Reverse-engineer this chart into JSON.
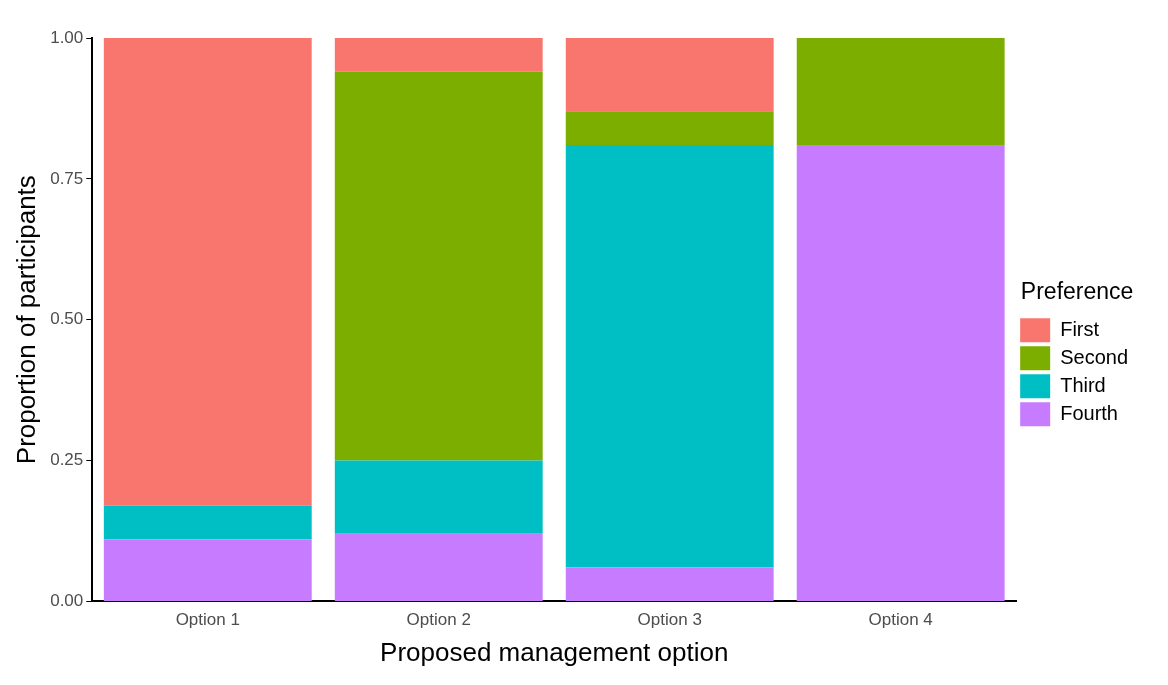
{
  "chart_data": {
    "type": "bar",
    "stacked": true,
    "xlabel": "Proposed management option",
    "ylabel": "Proportion of participants",
    "legend_title": "Preference",
    "legend": "right",
    "grid": false,
    "categories": [
      "Option 1",
      "Option 2",
      "Option 3",
      "Option 4"
    ],
    "ylim": [
      0,
      1
    ],
    "yticks": [
      {
        "value": 0,
        "label": "0.00"
      },
      {
        "value": 0.25,
        "label": "0.25"
      },
      {
        "value": 0.5,
        "label": "0.50"
      },
      {
        "value": 0.75,
        "label": "0.75"
      },
      {
        "value": 1,
        "label": "1.00"
      }
    ],
    "series": [
      {
        "name": "Fourth",
        "color": "#c77cff",
        "values": [
          0.11,
          0.12,
          0.06,
          0.81
        ]
      },
      {
        "name": "Third",
        "color": "#00bfc4",
        "values": [
          0.06,
          0.13,
          0.75,
          0
        ]
      },
      {
        "name": "Second",
        "color": "#7cae00",
        "values": [
          0,
          0.69,
          0.06,
          0.19
        ]
      },
      {
        "name": "First",
        "color": "#f8766d",
        "values": [
          0.83,
          0.06,
          0.13,
          0
        ]
      }
    ]
  }
}
